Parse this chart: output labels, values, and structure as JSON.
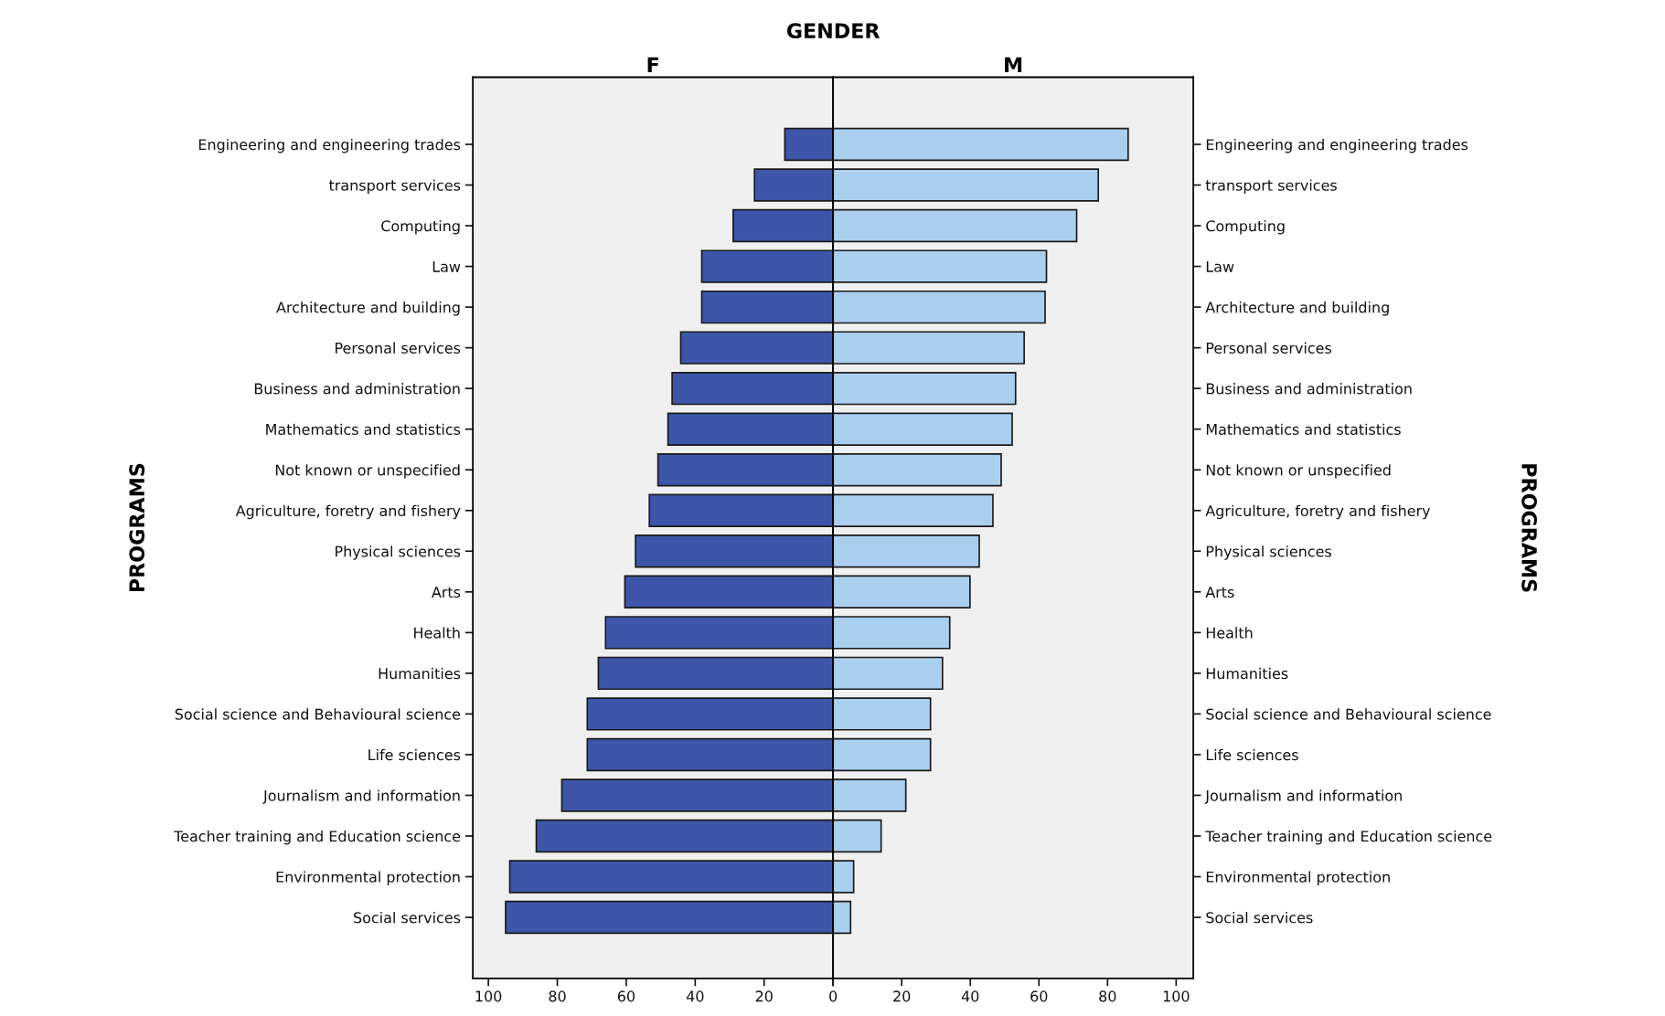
{
  "chart_data": [
    {
      "type": "bar",
      "orientation": "horizontal",
      "title": "GENDER",
      "subtitle": "F",
      "ylabel": "PROGRAMS",
      "categories": [
        "Engineering and engineering trades",
        "transport services",
        "Computing",
        "Law",
        "Architecture and building",
        "Personal services",
        "Business and administration",
        "Mathematics and statistics",
        "Not known or unspecified",
        "Agriculture, foretry and fishery",
        "Physical sciences",
        "Arts",
        "Health",
        "Humanities",
        "Social science and Behavioural science",
        "Life sciences",
        "Journalism and information",
        "Teacher training and Education science",
        "Environmental protection",
        "Social services"
      ],
      "values": [
        14,
        22.8,
        29,
        38.1,
        38.1,
        44.2,
        46.7,
        47.9,
        50.8,
        53.3,
        57.3,
        60.4,
        66,
        68.1,
        71.3,
        71.3,
        78.7,
        86.1,
        93.8,
        95
      ],
      "color": "#3d56a9",
      "xlim": [
        104.5,
        0
      ],
      "xticks": [
        100,
        80,
        60,
        40,
        20,
        {
          "value": 0,
          "label": null
        }
      ],
      "grid": false,
      "legend": false
    },
    {
      "type": "bar",
      "orientation": "horizontal",
      "subtitle": "M",
      "ylabel": "PROGRAMS",
      "categories": [
        "Engineering and engineering trades",
        "transport services",
        "Computing",
        "Law",
        "Architecture and building",
        "Personal services",
        "Business and administration",
        "Mathematics and statistics",
        "Not known or unspecified",
        "Agriculture, foretry and fishery",
        "Physical sciences",
        "Arts",
        "Health",
        "Humanities",
        "Social science and Behavioural science",
        "Life sciences",
        "Journalism and information",
        "Teacher training and Education science",
        "Environmental protection",
        "Social services"
      ],
      "values": [
        86,
        77.3,
        71,
        62.2,
        61.8,
        55.7,
        53.2,
        52.2,
        49,
        46.6,
        42.6,
        39.9,
        34,
        31.9,
        28.4,
        28.4,
        21.2,
        14,
        6,
        5.1
      ],
      "color": "#aacfee",
      "xlim": [
        0,
        105
      ],
      "xticks": [
        0,
        20,
        40,
        60,
        80,
        100
      ],
      "grid": false,
      "legend": false
    }
  ]
}
